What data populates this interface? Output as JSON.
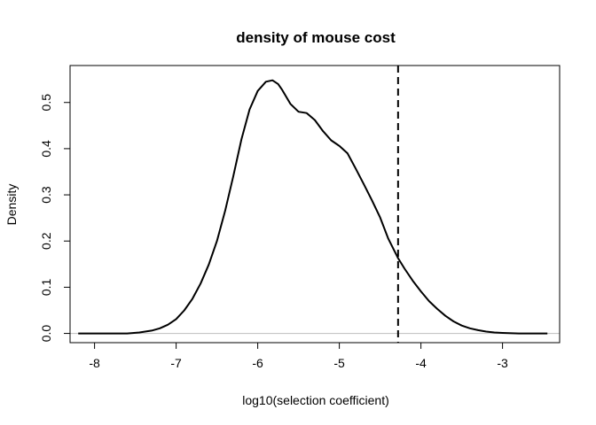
{
  "chart_data": {
    "type": "line",
    "title": "density of mouse cost",
    "xlabel": "log10(selection coefficient)",
    "ylabel": "Density",
    "xlim": [
      -8.3,
      -2.3
    ],
    "ylim": [
      -0.02,
      0.58
    ],
    "xticks": [
      -8,
      -7,
      -6,
      -5,
      -4,
      -3
    ],
    "yticks": [
      0.0,
      0.1,
      0.2,
      0.3,
      0.4,
      0.5
    ],
    "xtick_labels": [
      "-8",
      "-7",
      "-6",
      "-5",
      "-4",
      "-3"
    ],
    "ytick_labels": [
      "0.0",
      "0.1",
      "0.2",
      "0.3",
      "0.4",
      "0.5"
    ],
    "grid": false,
    "baseline": {
      "y": 0,
      "color": "#bebebe"
    },
    "reference_line": {
      "x": -4.28,
      "style": "dashed",
      "color": "#000000"
    },
    "series": [
      {
        "color": "#000000",
        "x": [
          -8.2,
          -8.0,
          -7.8,
          -7.6,
          -7.45,
          -7.3,
          -7.2,
          -7.1,
          -7.0,
          -6.9,
          -6.8,
          -6.7,
          -6.6,
          -6.5,
          -6.4,
          -6.3,
          -6.2,
          -6.1,
          -6.0,
          -5.9,
          -5.82,
          -5.75,
          -5.7,
          -5.6,
          -5.5,
          -5.4,
          -5.3,
          -5.2,
          -5.1,
          -5.0,
          -4.9,
          -4.8,
          -4.7,
          -4.6,
          -4.5,
          -4.4,
          -4.3,
          -4.28,
          -4.2,
          -4.1,
          -4.0,
          -3.9,
          -3.8,
          -3.7,
          -3.6,
          -3.5,
          -3.4,
          -3.3,
          -3.2,
          -3.1,
          -3.0,
          -2.8,
          -2.6,
          -2.45
        ],
        "y": [
          0.0,
          0.0,
          0.0,
          0.0,
          0.002,
          0.006,
          0.011,
          0.019,
          0.031,
          0.05,
          0.075,
          0.108,
          0.149,
          0.2,
          0.265,
          0.34,
          0.42,
          0.485,
          0.525,
          0.545,
          0.548,
          0.54,
          0.527,
          0.497,
          0.48,
          0.477,
          0.462,
          0.438,
          0.418,
          0.406,
          0.39,
          0.357,
          0.323,
          0.288,
          0.251,
          0.205,
          0.17,
          0.163,
          0.14,
          0.114,
          0.091,
          0.07,
          0.053,
          0.038,
          0.026,
          0.017,
          0.011,
          0.007,
          0.004,
          0.002,
          0.001,
          0.0,
          0.0,
          0.0
        ]
      }
    ]
  }
}
